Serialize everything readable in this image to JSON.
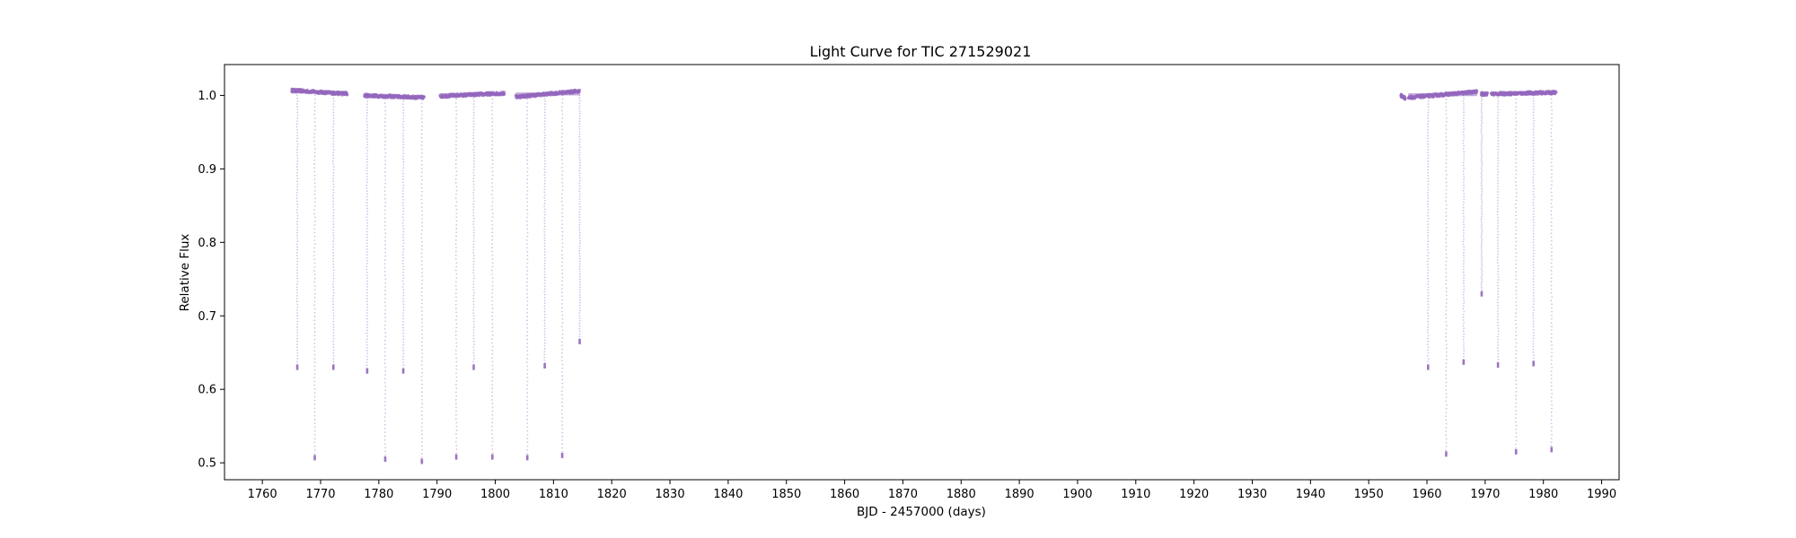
{
  "chart_data": {
    "type": "scatter",
    "title": "Light Curve for TIC 271529021",
    "xlabel": "BJD - 2457000 (days)",
    "ylabel": "Relative Flux",
    "xlim": [
      1753.5,
      1993
    ],
    "ylim": [
      0.477,
      1.042
    ],
    "x_ticks": [
      1760,
      1770,
      1780,
      1790,
      1800,
      1810,
      1820,
      1830,
      1840,
      1850,
      1860,
      1870,
      1880,
      1890,
      1900,
      1910,
      1920,
      1930,
      1940,
      1950,
      1960,
      1970,
      1980,
      1990
    ],
    "y_ticks": [
      0.5,
      0.6,
      0.7,
      0.8,
      0.9,
      1.0
    ],
    "grid": false,
    "legend": "none",
    "series": [
      {
        "color": "#9467bd",
        "baseline_segments": [
          {
            "x0": 1765.0,
            "x1": 1774.6,
            "y0": 1.007,
            "y1": 1.002
          },
          {
            "x0": 1777.5,
            "x1": 1787.8,
            "y0": 1.0,
            "y1": 0.997
          },
          {
            "x0": 1790.5,
            "x1": 1801.6,
            "y0": 0.999,
            "y1": 1.003
          },
          {
            "x0": 1803.5,
            "x1": 1814.5,
            "y0": 0.998,
            "y1": 1.006
          },
          {
            "x0": 1955.5,
            "x1": 1956.3,
            "y0": 1.0,
            "y1": 0.996
          },
          {
            "x0": 1956.8,
            "x1": 1968.6,
            "y0": 0.997,
            "y1": 1.005
          },
          {
            "x0": 1969.3,
            "x1": 1970.4,
            "y0": 1.002,
            "y1": 1.002
          },
          {
            "x0": 1971.0,
            "x1": 1982.2,
            "y0": 1.002,
            "y1": 1.004
          }
        ],
        "eclipses": [
          {
            "x": 1766.0,
            "depth": 0.63
          },
          {
            "x": 1769.0,
            "depth": 0.507
          },
          {
            "x": 1772.2,
            "depth": 0.63
          },
          {
            "x": 1778.0,
            "depth": 0.625
          },
          {
            "x": 1781.1,
            "depth": 0.505
          },
          {
            "x": 1784.2,
            "depth": 0.625
          },
          {
            "x": 1787.4,
            "depth": 0.502
          },
          {
            "x": 1793.3,
            "depth": 0.508
          },
          {
            "x": 1796.3,
            "depth": 0.63
          },
          {
            "x": 1799.5,
            "depth": 0.508
          },
          {
            "x": 1805.5,
            "depth": 0.507
          },
          {
            "x": 1808.5,
            "depth": 0.632
          },
          {
            "x": 1811.5,
            "depth": 0.51
          },
          {
            "x": 1814.5,
            "depth": 0.665
          },
          {
            "x": 1960.2,
            "depth": 0.63
          },
          {
            "x": 1963.3,
            "depth": 0.512
          },
          {
            "x": 1966.3,
            "depth": 0.637
          },
          {
            "x": 1969.4,
            "depth": 0.73
          },
          {
            "x": 1972.2,
            "depth": 0.633
          },
          {
            "x": 1975.3,
            "depth": 0.515
          },
          {
            "x": 1978.3,
            "depth": 0.635
          },
          {
            "x": 1981.4,
            "depth": 0.518
          }
        ]
      }
    ]
  }
}
